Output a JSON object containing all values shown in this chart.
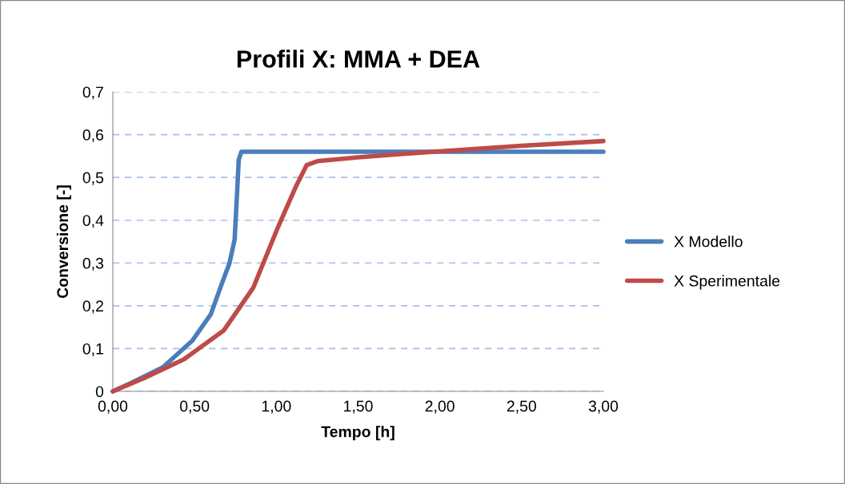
{
  "chart_data": {
    "type": "line",
    "title": "Profili X: MMA + DEA",
    "xlabel": "Tempo [h]",
    "ylabel": "Conversione [-]",
    "series": [
      {
        "name": "X Modello",
        "color": "#4a7ebb",
        "x": [
          0,
          0.109,
          0.305,
          0.485,
          0.599,
          0.664,
          0.713,
          0.745,
          0.762,
          0.77,
          0.786,
          1.5,
          3.0
        ],
        "values": [
          0,
          0.019,
          0.056,
          0.118,
          0.18,
          0.249,
          0.299,
          0.355,
          0.479,
          0.541,
          0.56,
          0.56,
          0.56
        ]
      },
      {
        "name": "X Sperimentale",
        "color": "#be4b48",
        "x": [
          0,
          0.191,
          0.436,
          0.68,
          0.86,
          1.006,
          1.12,
          1.186,
          1.251,
          1.5,
          1.96,
          2.5,
          3.0
        ],
        "values": [
          0,
          0.031,
          0.075,
          0.143,
          0.243,
          0.38,
          0.479,
          0.529,
          0.538,
          0.547,
          0.56,
          0.574,
          0.585
        ]
      }
    ],
    "xlim": [
      0,
      3
    ],
    "xticks": [
      {
        "value": 0,
        "label": "0,00"
      },
      {
        "value": 0.5,
        "label": "0,50"
      },
      {
        "value": 1,
        "label": "1,00"
      },
      {
        "value": 1.5,
        "label": "1,50"
      },
      {
        "value": 2,
        "label": "2,00"
      },
      {
        "value": 2.5,
        "label": "2,50"
      },
      {
        "value": 3,
        "label": "3,00"
      }
    ],
    "ylim": [
      0,
      0.7
    ],
    "yticks": [
      0,
      {
        "value": 0.1,
        "label": "0,1"
      },
      {
        "value": 0.2,
        "label": "0,2"
      },
      {
        "value": 0.3,
        "label": "0,3"
      },
      {
        "value": 0.4,
        "label": "0,4"
      },
      {
        "value": 0.5,
        "label": "0,5"
      },
      {
        "value": 0.6,
        "label": "0,6"
      },
      {
        "value": 0.7,
        "label": "0,7"
      }
    ],
    "grid": "y",
    "legend": "right",
    "line_style": "solid",
    "marker": "none"
  }
}
